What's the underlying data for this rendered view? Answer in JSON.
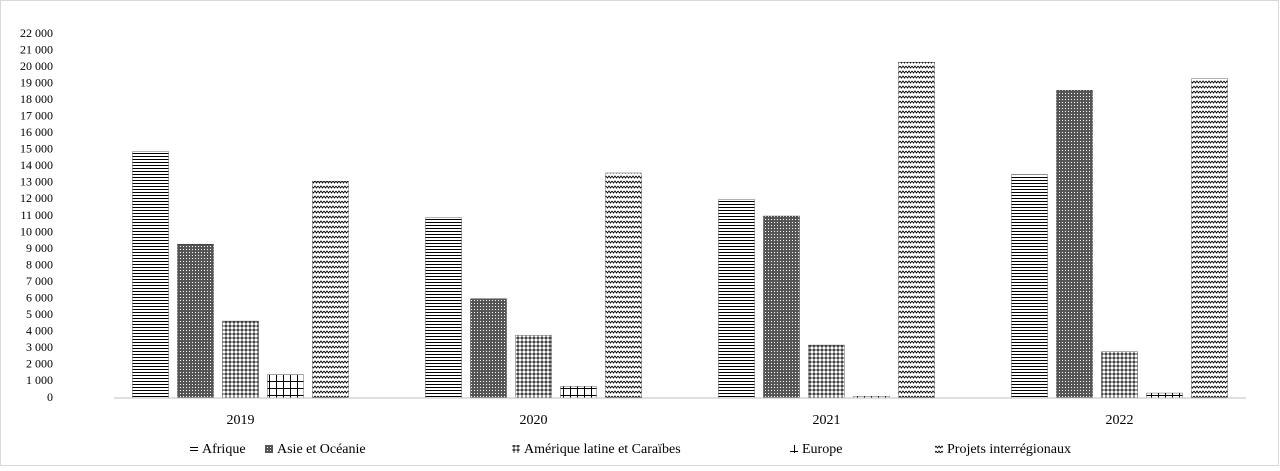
{
  "chart_data": {
    "type": "bar",
    "categories": [
      "2019",
      "2020",
      "2021",
      "2022"
    ],
    "series": [
      {
        "name": "Afrique",
        "color": "#000000",
        "pattern": "horizontal",
        "values": [
          14900,
          10900,
          12000,
          13500
        ]
      },
      {
        "name": "Asie et Océanie",
        "color": "#000000",
        "pattern": "crosshatch",
        "values": [
          9300,
          6000,
          11000,
          18600
        ]
      },
      {
        "name": "Amérique latine et Caraïbes",
        "color": "#000000",
        "pattern": "checker",
        "values": [
          4650,
          3800,
          3200,
          2800
        ]
      },
      {
        "name": "Europe",
        "color": "#000000",
        "pattern": "grid",
        "values": [
          1400,
          700,
          100,
          300
        ]
      },
      {
        "name": "Projets interrégionaux",
        "color": "#000000",
        "pattern": "zigzag",
        "values": [
          13100,
          13600,
          20300,
          19300
        ]
      }
    ],
    "ylim": [
      0,
      22000
    ],
    "yticks": [
      0,
      {
        "value": 1000,
        "label": "1 000"
      },
      {
        "value": 2000,
        "label": "2 000"
      },
      {
        "value": 3000,
        "label": "3 000"
      },
      {
        "value": 4000,
        "label": "4 000"
      },
      {
        "value": 5000,
        "label": "5 000"
      },
      {
        "value": 6000,
        "label": "6 000"
      },
      {
        "value": 7000,
        "label": "7 000"
      },
      {
        "value": 8000,
        "label": "8 000"
      },
      {
        "value": 9000,
        "label": "9 000"
      },
      {
        "value": 10000,
        "label": "10 000"
      },
      {
        "value": 11000,
        "label": "11 000"
      },
      {
        "value": 12000,
        "label": "12 000"
      },
      {
        "value": 13000,
        "label": "13 000"
      },
      {
        "value": 14000,
        "label": "14 000"
      },
      {
        "value": 15000,
        "label": "15 000"
      },
      {
        "value": 16000,
        "label": "16 000"
      },
      {
        "value": 17000,
        "label": "17 000"
      },
      {
        "value": 18000,
        "label": "18 000"
      },
      {
        "value": 19000,
        "label": "19 000"
      },
      {
        "value": 20000,
        "label": "20 000"
      },
      {
        "value": 21000,
        "label": "21 000"
      },
      {
        "value": 22000,
        "label": "22 000"
      }
    ],
    "grid": false,
    "legend": "bottom"
  }
}
